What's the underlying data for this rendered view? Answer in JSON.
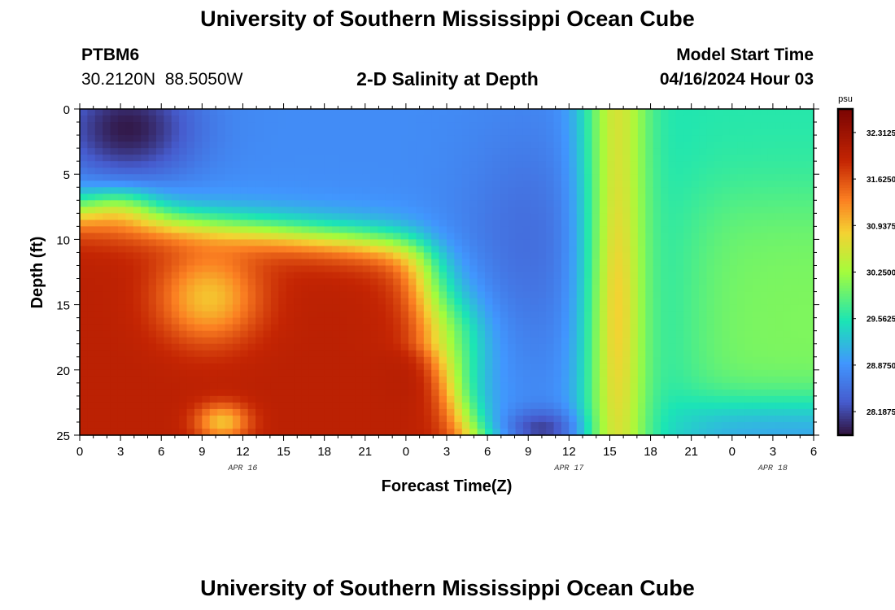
{
  "page": {
    "title": "University of Southern Mississippi Ocean Cube",
    "title_repeat": "University of Southern Mississippi Ocean Cube",
    "station_id": "PTBM6",
    "station_coords": "30.2120N  88.5050W",
    "chart_heading": "2-D Salinity at Depth",
    "model_start_label": "Model Start Time",
    "model_start_value": "04/16/2024 Hour 03"
  },
  "chart_data": {
    "type": "heatmap",
    "title": "2-D Salinity at Depth",
    "xlabel": "Forecast Time(Z)",
    "ylabel": "Depth (ft)",
    "x_range_hours": [
      0,
      54
    ],
    "y_range": [
      0,
      25
    ],
    "y_ticks": [
      "0",
      "5",
      "10",
      "15",
      "20",
      "25"
    ],
    "x_tick_labels": [
      "0",
      "3",
      "6",
      "9",
      "12",
      "15",
      "18",
      "21",
      "0",
      "3",
      "6",
      "9",
      "12",
      "15",
      "18",
      "21",
      "0",
      "3",
      "6"
    ],
    "date_labels": [
      {
        "text": "APR 16",
        "hour": 12
      },
      {
        "text": "APR 17",
        "hour": 36
      },
      {
        "text": "APR 18",
        "hour": 51
      }
    ],
    "colorbar": {
      "unit": "psu",
      "min": 27.84,
      "max": 32.66,
      "tick_values": [
        28.1875,
        28.875,
        29.5625,
        30.25,
        30.9375,
        31.625,
        32.3125
      ],
      "tick_labels": [
        "28.1875",
        "28.8750",
        "29.5625",
        "30.2500",
        "30.9375",
        "31.6250",
        "32.3125"
      ]
    },
    "colors": {
      "darkest_low": "#30123b",
      "blue": "#4686fb",
      "cyan": "#1ae4b6",
      "green_yellow": "#a4fc3c",
      "orange": "#fb8022",
      "red": "#c42503",
      "darkest_high": "#7a0403"
    }
  }
}
